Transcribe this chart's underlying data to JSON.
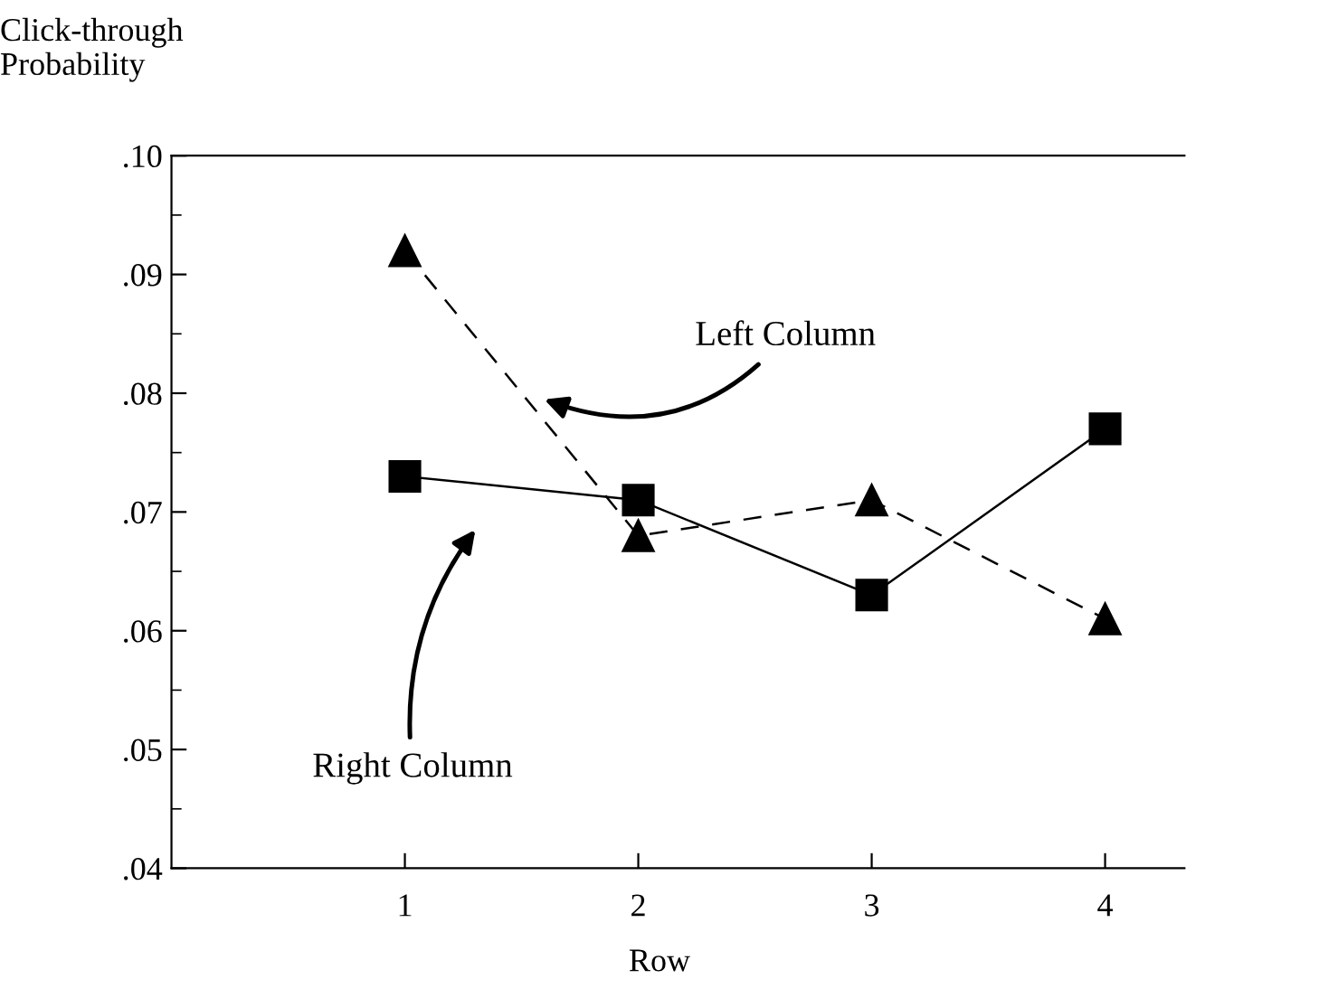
{
  "chart_data": {
    "type": "line",
    "xlabel": "Row",
    "ylabel": "Click-through\nProbability",
    "x": [
      1,
      2,
      3,
      4
    ],
    "series": [
      {
        "color": "#000000",
        "marker": "triangle",
        "line_style": "dashed",
        "values": [
          0.092,
          0.068,
          0.071,
          0.061
        ]
      },
      {
        "color": "#000000",
        "marker": "square",
        "line_style": "solid",
        "values": [
          0.073,
          0.071,
          0.063,
          0.077
        ]
      }
    ],
    "xlim": [
      0,
      4.34
    ],
    "xticks": [
      1,
      2,
      3,
      4
    ],
    "ylim": [
      0.04,
      0.1
    ],
    "yticks": [
      {
        "value": 0.04,
        "label": ".04"
      },
      {
        "value": 0.05,
        "label": ".05"
      },
      {
        "value": 0.06,
        "label": ".06"
      },
      {
        "value": 0.07,
        "label": ".07"
      },
      {
        "value": 0.08,
        "label": ".08"
      },
      {
        "value": 0.09,
        "label": ".09"
      },
      {
        "value": 0.1,
        "label": ".10"
      }
    ],
    "grid": false,
    "legend": false,
    "annotations": [
      "Left Column",
      "Right Column"
    ]
  }
}
